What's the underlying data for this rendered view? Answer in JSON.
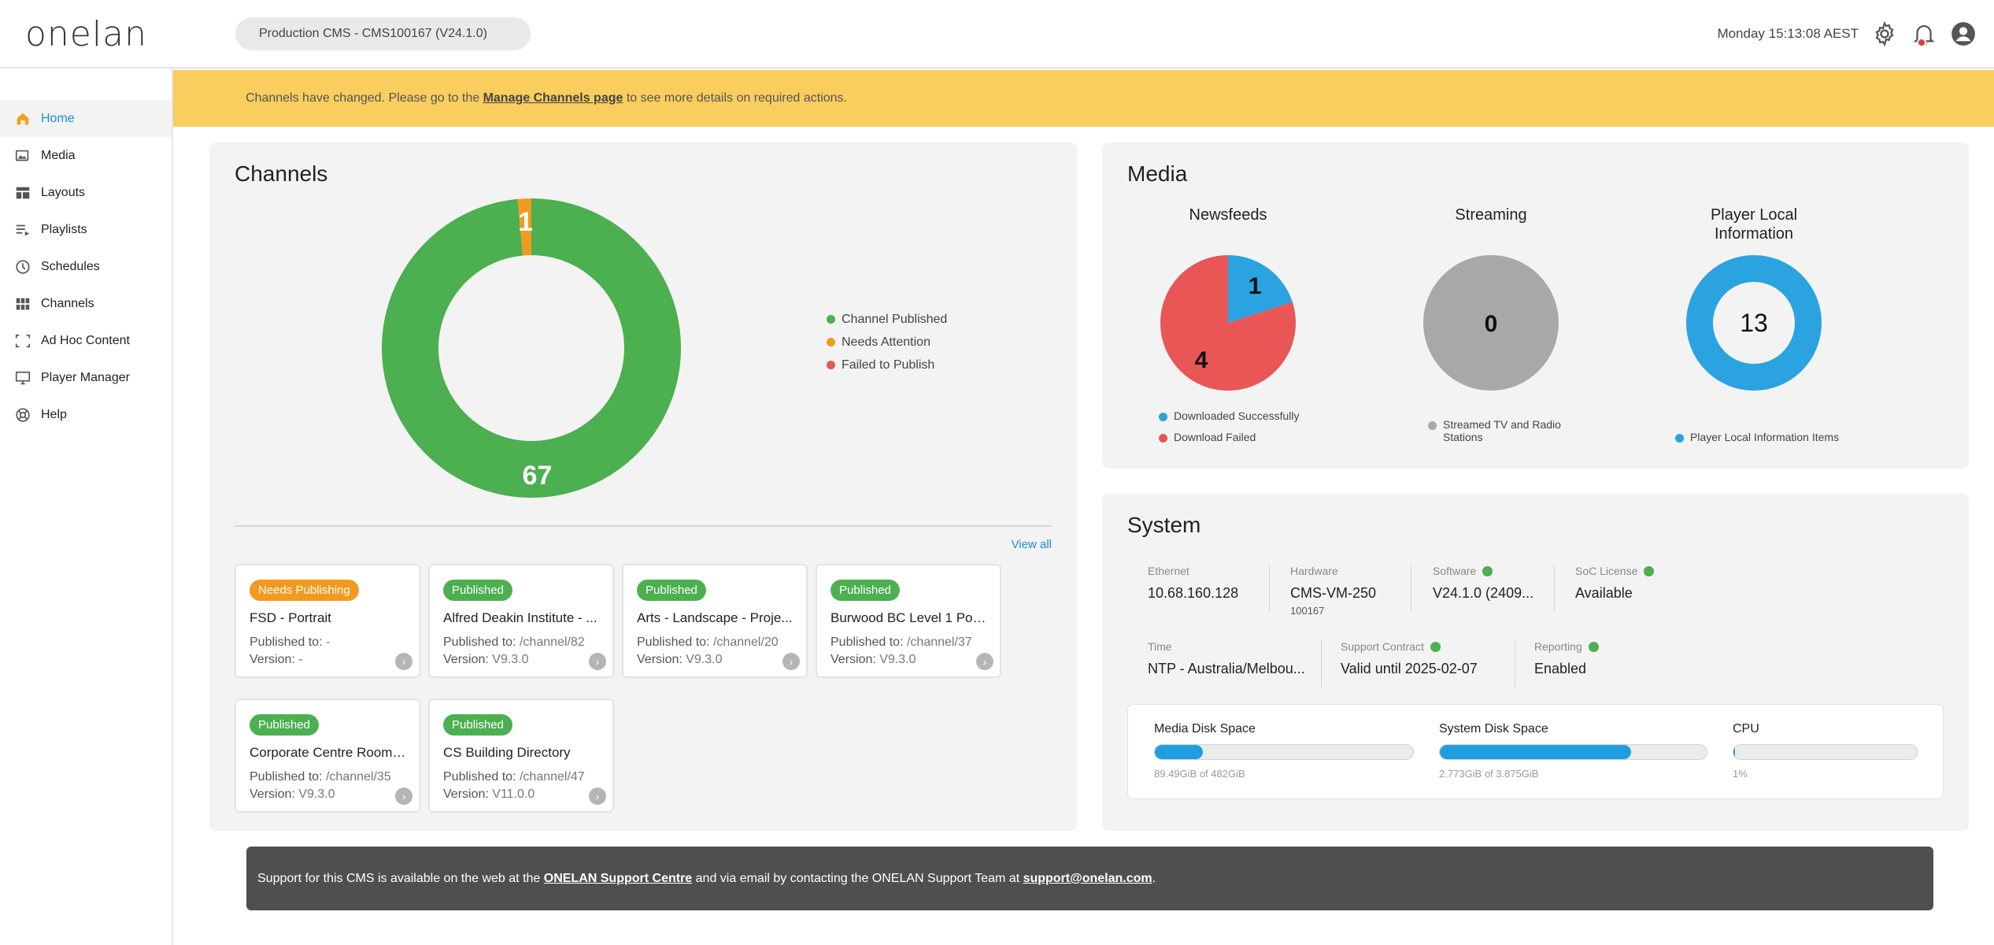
{
  "header": {
    "logo_text": "onelan",
    "environment": "Production CMS - CMS100167 (V24.1.0)",
    "clock": "Monday 15:13:08 AEST",
    "notification_count": "1"
  },
  "sidebar": {
    "items": [
      {
        "label": "Home",
        "icon": "home-icon",
        "active": true
      },
      {
        "label": "Media",
        "icon": "media-icon"
      },
      {
        "label": "Layouts",
        "icon": "layouts-icon"
      },
      {
        "label": "Playlists",
        "icon": "playlists-icon"
      },
      {
        "label": "Schedules",
        "icon": "clock-icon"
      },
      {
        "label": "Channels",
        "icon": "grid-icon"
      },
      {
        "label": "Ad Hoc Content",
        "icon": "frame-icon"
      },
      {
        "label": "Player Manager",
        "icon": "monitor-icon"
      },
      {
        "label": "Help",
        "icon": "lifebuoy-icon"
      }
    ]
  },
  "banner": {
    "text_before": "Channels have changed. Please go to the ",
    "link": "Manage Channels page",
    "text_after": " to see more details on required actions."
  },
  "channels": {
    "title": "Channels",
    "view_all": "View all",
    "tiles": [
      {
        "status": "Needs Publishing",
        "name": "FSD - Portrait",
        "published_label": "Published to:",
        "published_to": "-",
        "version_label": "Version:",
        "version": "-"
      },
      {
        "status": "Published",
        "name": "Alfred Deakin Institute - ...",
        "published_label": "Published to:",
        "published_to": "/channel/82",
        "version_label": "Version:",
        "version": "V9.3.0"
      },
      {
        "status": "Published",
        "name": "Arts - Landscape - Proje...",
        "published_label": "Published to:",
        "published_to": "/channel/20",
        "version_label": "Version:",
        "version": "V9.3.0"
      },
      {
        "status": "Published",
        "name": "Burwood BC Level 1 Port...",
        "published_label": "Published to:",
        "published_to": "/channel/37",
        "version_label": "Version:",
        "version": "V9.3.0"
      },
      {
        "status": "Published",
        "name": "Corporate Centre Room ...",
        "published_label": "Published to:",
        "published_to": "/channel/35",
        "version_label": "Version:",
        "version": "V9.3.0"
      },
      {
        "status": "Published",
        "name": "CS Building Directory",
        "published_label": "Published to:",
        "published_to": "/channel/47",
        "version_label": "Version:",
        "version": "V11.0.0"
      }
    ]
  },
  "media": {
    "title": "Media",
    "newsfeeds_title": "Newsfeeds",
    "streaming_title": "Streaming",
    "player_local_title": "Player Local Information",
    "newsfeeds_legend": [
      "Downloaded Successfully",
      "Download Failed"
    ],
    "streaming_legend": [
      "Streamed TV and Radio Stations"
    ],
    "player_local_legend": [
      "Player Local Information Items"
    ]
  },
  "system": {
    "title": "System",
    "ethernet_label": "Ethernet",
    "ethernet": "10.68.160.128",
    "hardware_label": "Hardware",
    "hardware": "CMS-VM-250",
    "hardware_sub": "100167",
    "software_label": "Software",
    "software": "V24.1.0 (2409...",
    "soc_label": "SoC License",
    "soc": "Available",
    "time_label": "Time",
    "time": "NTP - Australia/Melbou...",
    "support_label": "Support Contract",
    "support": "Valid until 2025-02-07",
    "reporting_label": "Reporting",
    "reporting": "Enabled",
    "media_disk_label": "Media Disk Space",
    "media_disk_text": "89.49GiB of 482GiB",
    "media_disk_fraction": 0.186,
    "system_disk_label": "System Disk Space",
    "system_disk_text": "2.773GiB of 3.875GiB",
    "system_disk_fraction": 0.716,
    "cpu_label": "CPU",
    "cpu_text": "1%",
    "cpu_fraction": 0.01
  },
  "footer": {
    "text_before": "Support for this CMS is available on the web at the ",
    "link1": "ONELAN Support Centre",
    "text_middle": " and via email by contacting the ONELAN Support Team at ",
    "link2": "support@onelan.com",
    "text_after": "."
  },
  "colors": {
    "published": "#4caf50",
    "attention": "#f29a1f",
    "failed": "#e85656",
    "blue": "#2aa3e0",
    "grey": "#a8a8a8",
    "banner": "#f9cd5e"
  },
  "chart_data": [
    {
      "type": "pie",
      "title": "Channels",
      "categories": [
        "Channel Published",
        "Needs Attention",
        "Failed to Publish"
      ],
      "values": [
        67,
        1,
        0
      ],
      "legend": "right"
    },
    {
      "type": "pie",
      "title": "Newsfeeds",
      "categories": [
        "Downloaded Successfully",
        "Download Failed"
      ],
      "values": [
        1,
        4
      ],
      "legend": "bottom"
    },
    {
      "type": "pie",
      "title": "Streaming",
      "categories": [
        "Streamed TV and Radio Stations"
      ],
      "values": [
        0
      ],
      "legend": "bottom"
    },
    {
      "type": "pie",
      "title": "Player Local Information",
      "categories": [
        "Player Local Information Items"
      ],
      "values": [
        13
      ],
      "legend": "bottom"
    }
  ]
}
